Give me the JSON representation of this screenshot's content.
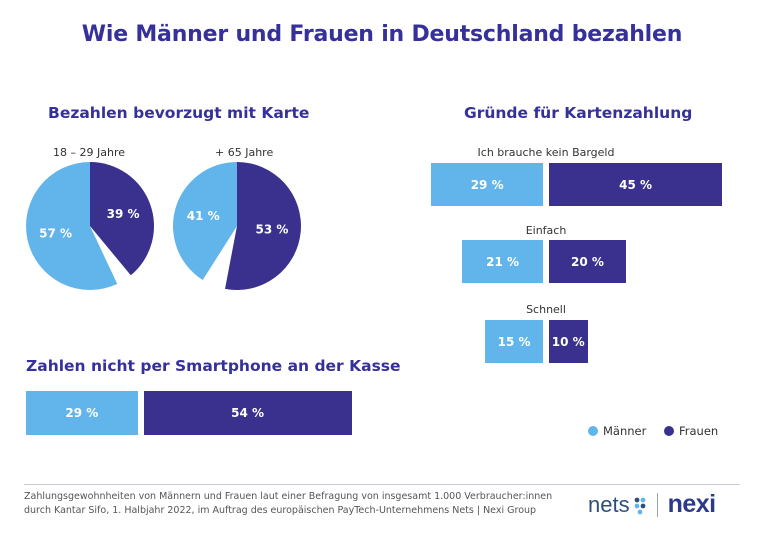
{
  "title": "Wie Männer und Frauen in Deutschland bezahlen",
  "colors": {
    "maenner": "#62b5ea",
    "frauen": "#3a318f",
    "heading": "#35309a"
  },
  "legend": {
    "maenner": "Männer",
    "frauen": "Frauen"
  },
  "footer": {
    "line1": "Zahlungsgewohnheiten von Männern und Frauen laut einer Befragung von insgesamt 1.000 Verbraucher:innen",
    "line2": "durch Kantar Sifo, 1. Halbjahr 2022, im Auftrag des europäischen PayTech-Unternehmens Nets | Nexi Group"
  },
  "logo": {
    "nets": "nets",
    "nexi": "nexi"
  },
  "chart_data": [
    {
      "type": "pie",
      "title": "Bezahlen bevorzugt mit Karte",
      "pies": [
        {
          "label": "18 – 29 Jahre",
          "slices": [
            {
              "series": "Männer",
              "value": 57,
              "text": "57 %"
            },
            {
              "series": "Frauen",
              "value": 39,
              "text": "39 %"
            }
          ]
        },
        {
          "label": "+ 65 Jahre",
          "slices": [
            {
              "series": "Männer",
              "value": 41,
              "text": "41 %"
            },
            {
              "series": "Frauen",
              "value": 53,
              "text": "53 %"
            }
          ]
        }
      ]
    },
    {
      "type": "bar",
      "title": "Gründe für Kartenzahlung",
      "categories": [
        "Ich brauche kein Bargeld",
        "Einfach",
        "Schnell"
      ],
      "series": [
        {
          "name": "Männer",
          "values": [
            29,
            21,
            15
          ],
          "labels": [
            "29 %",
            "21 %",
            "15 %"
          ]
        },
        {
          "name": "Frauen",
          "values": [
            45,
            20,
            10
          ],
          "labels": [
            "45 %",
            "20 %",
            "10 %"
          ]
        }
      ]
    },
    {
      "type": "bar",
      "title": "Zahlen nicht per Smartphone an der Kasse",
      "categories": [
        ""
      ],
      "series": [
        {
          "name": "Männer",
          "values": [
            29
          ],
          "labels": [
            "29 %"
          ]
        },
        {
          "name": "Frauen",
          "values": [
            54
          ],
          "labels": [
            "54 %"
          ]
        }
      ]
    }
  ]
}
